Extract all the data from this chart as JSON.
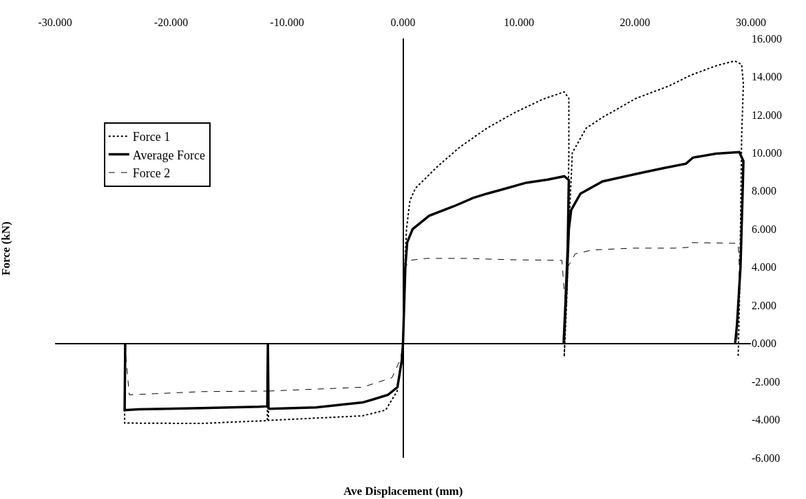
{
  "chart_data": {
    "type": "line",
    "xlabel": "Ave Displacement (mm)",
    "ylabel": "Force (kN)",
    "xlim": [
      -30,
      30
    ],
    "ylim": [
      -6,
      16
    ],
    "legend": "top left",
    "marker": "none",
    "xticks": [
      {
        "value": -30,
        "label": "-30.000"
      },
      {
        "value": -20,
        "label": "-20.000"
      },
      {
        "value": -10,
        "label": "-10.000"
      },
      {
        "value": 0,
        "label": "0.000"
      },
      {
        "value": 10,
        "label": "10.000"
      },
      {
        "value": 20,
        "label": "20.000"
      },
      {
        "value": 30,
        "label": "30.000"
      }
    ],
    "yticks": [
      {
        "value": -6,
        "label": "-6.000"
      },
      {
        "value": -4,
        "label": "-4.000"
      },
      {
        "value": -2,
        "label": "-2.000"
      },
      {
        "value": 0,
        "label": "0.000"
      },
      {
        "value": 2,
        "label": "2.000"
      },
      {
        "value": 4,
        "label": "4.000"
      },
      {
        "value": 6,
        "label": "6.000"
      },
      {
        "value": 8,
        "label": "8.000"
      },
      {
        "value": 10,
        "label": "10.000"
      },
      {
        "value": 12,
        "label": "12.000"
      },
      {
        "value": 14,
        "label": "14.000"
      },
      {
        "value": 16,
        "label": "16.000"
      }
    ],
    "series": [
      {
        "name": "Force 1",
        "color": "#000000",
        "line_style": "dotted",
        "x": [
          -24.0,
          -24.0,
          -17.4,
          -11.7,
          -11.65,
          -11.6,
          -3.5,
          -1.5,
          -0.5,
          -0.1,
          0,
          0.1,
          0.3,
          0.6,
          1.07,
          2.0,
          3.0,
          4.9,
          7.25,
          9.6,
          12.0,
          13.9,
          14.3,
          14.3,
          14.2,
          14.0,
          13.9,
          14.1,
          14.3,
          14.6,
          15.8,
          17.2,
          20.1,
          22.9,
          24.8,
          27.0,
          28.6,
          29.2,
          29.35,
          29.2,
          29.1,
          29.0,
          28.9
        ],
        "values": [
          0,
          -4.18,
          -4.2,
          -4.05,
          0,
          -4.04,
          -3.8,
          -3.5,
          -2.5,
          -1,
          0,
          3,
          6,
          7.5,
          8.14,
          8.7,
          9.3,
          10.3,
          11.3,
          12.1,
          12.8,
          13.2,
          12.86,
          10,
          5,
          1,
          -0.7,
          2,
          6,
          10.0,
          11.3,
          11.86,
          12.86,
          13.5,
          14.07,
          14.57,
          14.82,
          14.64,
          13.6,
          10.9,
          6,
          2,
          -0.7
        ]
      },
      {
        "name": "Average Force",
        "color": "#000000",
        "line_style": "solid",
        "x": [
          -23.95,
          -24.0,
          -22.8,
          -17.4,
          -12.4,
          -11.7,
          -11.65,
          -11.6,
          -11.5,
          -7.5,
          -3.5,
          -2.7,
          -1.3,
          -0.48,
          -0.1,
          0,
          0.1,
          0.2,
          0.36,
          0.83,
          2.26,
          4.4,
          6.06,
          7.25,
          8.7,
          10.6,
          12.5,
          13.9,
          14.3,
          14.2,
          14.0,
          13.85,
          14.1,
          14.3,
          14.5,
          15.3,
          17.2,
          20.6,
          22.5,
          24.4,
          25.0,
          27.0,
          29.0,
          29.35,
          29.3,
          29.1,
          28.8,
          28.64
        ],
        "values": [
          0,
          -3.5,
          -3.46,
          -3.39,
          -3.32,
          -3.3,
          0,
          -3.4,
          -3.43,
          -3.36,
          -3.1,
          -2.96,
          -2.7,
          -2.3,
          -0.86,
          0,
          2,
          4,
          5.3,
          6.0,
          6.7,
          7.2,
          7.64,
          7.86,
          8.1,
          8.43,
          8.6,
          8.77,
          8.57,
          5,
          2,
          0,
          3,
          6,
          7.0,
          7.86,
          8.5,
          8.96,
          9.2,
          9.43,
          9.75,
          9.96,
          10.04,
          9.57,
          8.3,
          4,
          1,
          0
        ]
      },
      {
        "name": "Force 2",
        "color": "#000000",
        "line_style": "dashed",
        "x": [
          -24.0,
          -23.6,
          -17.4,
          -11.7,
          -11.65,
          -11.6,
          -3.5,
          -0.95,
          -0.2,
          0,
          0.1,
          0.2,
          0.6,
          2.0,
          5.6,
          9.15,
          13.7,
          14.0,
          13.9,
          14.1,
          14.2,
          14.85,
          16.3,
          19.85,
          23.4,
          24.6,
          24.8,
          28.9,
          29.0,
          28.9,
          28.8
        ],
        "values": [
          0,
          -2.7,
          -2.53,
          -2.5,
          0,
          -2.5,
          -2.3,
          -1.8,
          -0.8,
          0,
          2,
          4,
          4.36,
          4.46,
          4.46,
          4.39,
          4.36,
          2,
          0,
          2,
          4,
          4.7,
          4.9,
          5.0,
          5.0,
          5.04,
          5.29,
          5.25,
          4,
          2,
          0
        ]
      }
    ]
  }
}
